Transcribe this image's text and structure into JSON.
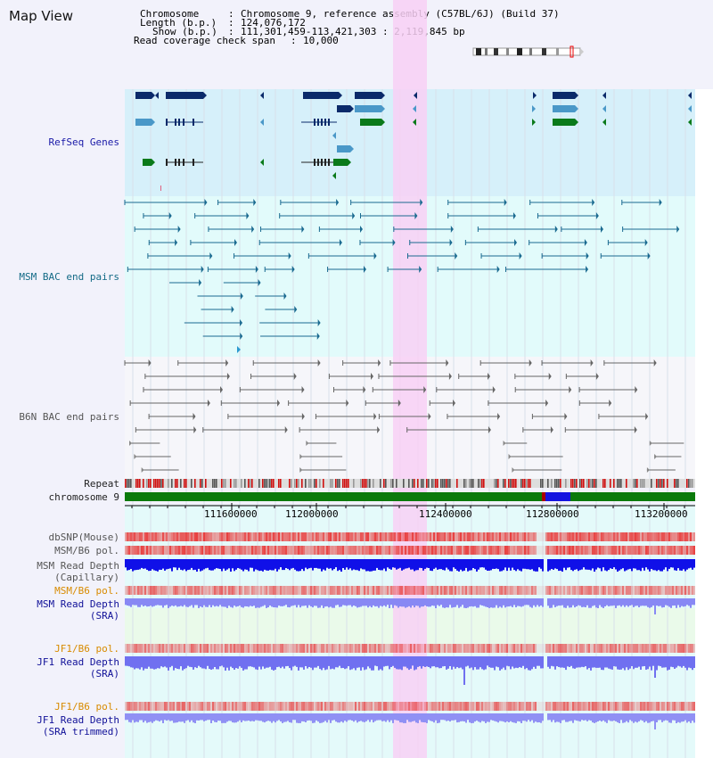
{
  "page_title": "Map View",
  "info": {
    "chromosome_label": "Chromosome",
    "chromosome_value": "Chromosome 9, reference assembly (C57BL/6J) (Build 37)",
    "length_label": "Length (b.p.)",
    "length_value": "124,076,172",
    "show_label": "Show (b.p.)",
    "show_value": "111,301,459-113,421,303 : 2,119,845 bp",
    "coverage_label": "Read coverage check span",
    "coverage_value": "10,000"
  },
  "tracks": {
    "refseq": "RefSeq Genes",
    "msm_bac": "MSM BAC end pairs",
    "b6n_bac": "B6N BAC end pairs",
    "repeat": "Repeat",
    "chromosome": "chromosome 9",
    "dbsnp": "dbSNP(Mouse)",
    "msm_b6_pol_1": "MSM/B6 pol.",
    "msm_depth_cap_1": "MSM Read Depth",
    "msm_depth_cap_2": "(Capillary)",
    "msm_b6_pol_2": "MSM/B6 pol.",
    "msm_depth_sra_1": "MSM Read Depth",
    "msm_depth_sra_2": "(SRA)",
    "jf1_b6_pol_1": "JF1/B6 pol.",
    "jf1_depth_sra_1": "JF1 Read Depth",
    "jf1_depth_sra_2": "(SRA)",
    "jf1_b6_pol_2": "JF1/B6 pol.",
    "jf1_depth_trim_1": "JF1 Read Depth",
    "jf1_depth_trim_2": "(SRA trimmed)"
  },
  "axis": {
    "ticks": [
      "111600000",
      "112000000",
      "112400000",
      "112800000",
      "113200000"
    ]
  },
  "colors": {
    "refseq_bg": "#d6f0fa",
    "msm_bg": "#e2fbfb",
    "b6n_bg": "#f6f6fa",
    "highlight": "#f8d0f4",
    "chromosome_bar": "#0b7a0b",
    "depth_blue": "#1010e8",
    "depth_light": "#8888f4",
    "snp_red": "#e84040"
  }
}
